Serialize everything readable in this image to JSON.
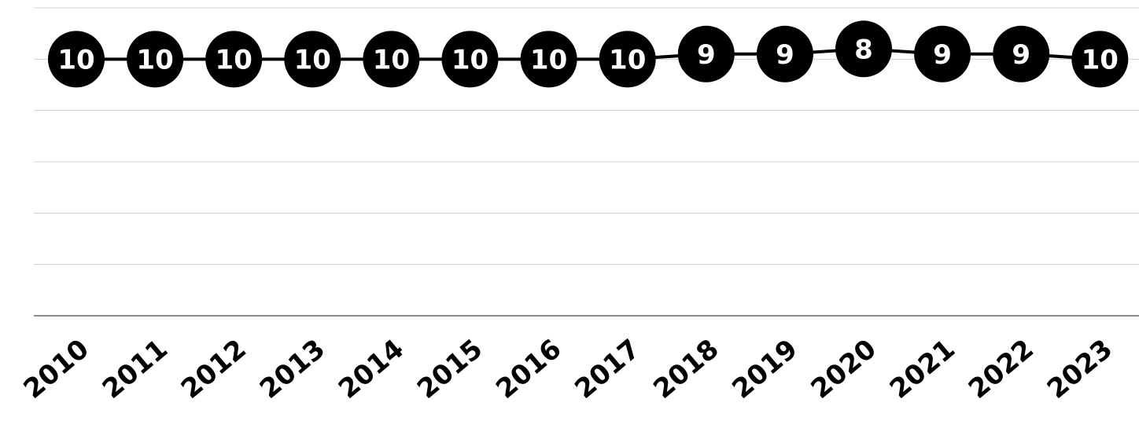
{
  "chart_data": {
    "type": "line",
    "categories": [
      "2010",
      "2011",
      "2012",
      "2013",
      "2014",
      "2015",
      "2016",
      "2017",
      "2018",
      "2019",
      "2020",
      "2021",
      "2022",
      "2023"
    ],
    "values": [
      10,
      10,
      10,
      10,
      10,
      10,
      10,
      10,
      9,
      9,
      8,
      9,
      9,
      10
    ],
    "color": "#000000",
    "ylim": [
      0,
      60
    ],
    "yticks": [
      0,
      10,
      20,
      30,
      40,
      50,
      60
    ],
    "inverted": true,
    "grid": true
  }
}
